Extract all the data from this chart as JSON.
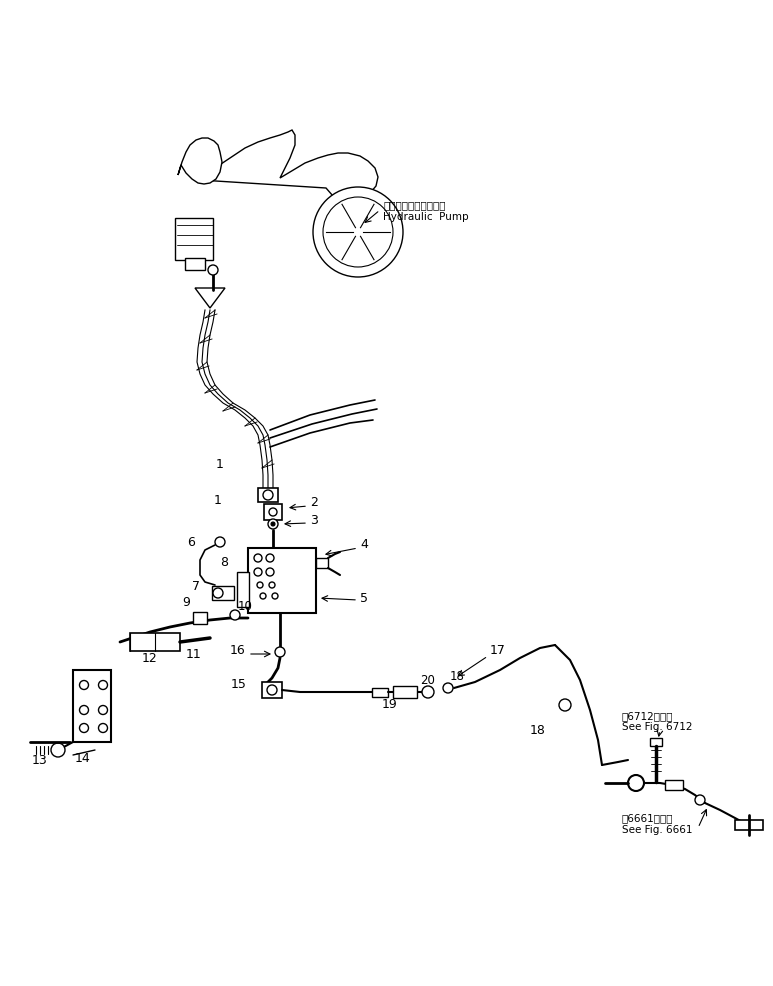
{
  "background": "#ffffff",
  "line_color": "#000000",
  "labels": {
    "hydraulic_pump_jp": "ハイドロリックポンプ",
    "hydraulic_pump_en": "Hydraulic  Pump",
    "see_fig_6712_jp": "第6712図参照",
    "see_fig_6712_en": "See Fig. 6712",
    "see_fig_6661_jp": "第6661図参照",
    "see_fig_6661_en": "See Fig. 6661"
  },
  "figsize": [
    7.73,
    9.86
  ],
  "dpi": 100
}
